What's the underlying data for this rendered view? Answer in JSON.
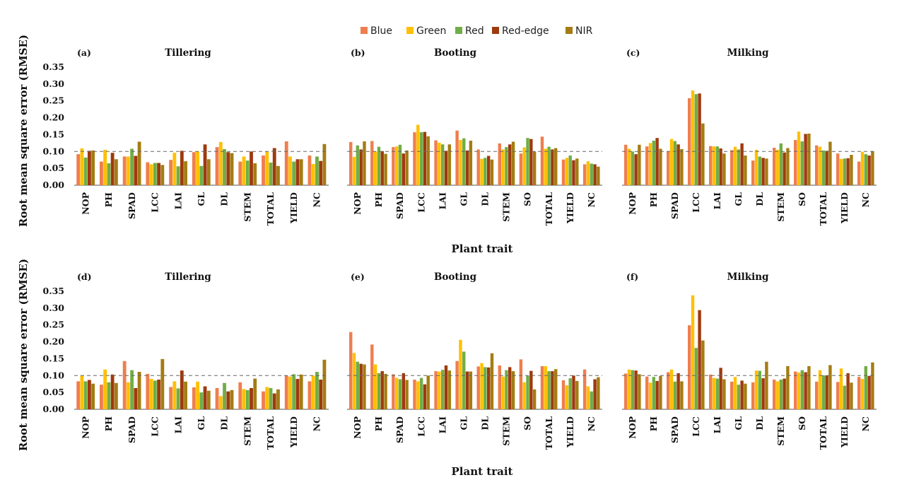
{
  "legend": {
    "items": [
      {
        "name": "Blue",
        "color": "#EE7E4E"
      },
      {
        "name": "Green",
        "color": "#FFC000"
      },
      {
        "name": "Red",
        "color": "#70AD47"
      },
      {
        "name": "Red-edge",
        "color": "#9E3A0E"
      },
      {
        "name": "NIR",
        "color": "#A47C12"
      }
    ]
  },
  "axes": {
    "ylabel": "Root mean square error (RMSE)",
    "xlabel": "Plant trait"
  },
  "chart_data": [
    {
      "type": "bar",
      "panel": "(a)",
      "title": "Tillering",
      "ylim": [
        0,
        0.35
      ],
      "yticks": [
        "0.00",
        "0.05",
        "0.10",
        "0.15",
        "0.20",
        "0.25",
        "0.30",
        "0.35"
      ],
      "reference_line": 0.1,
      "categories": [
        "NOP",
        "PH",
        "SPAD",
        "LCC",
        "LAI",
        "GL",
        "DL",
        "STEM",
        "TOTAL",
        "YIELD",
        "NC"
      ],
      "series": [
        {
          "name": "Blue",
          "values": [
            0.092,
            0.07,
            0.085,
            0.068,
            0.075,
            0.098,
            0.113,
            0.07,
            0.088,
            0.13,
            0.088
          ]
        },
        {
          "name": "Green",
          "values": [
            0.109,
            0.105,
            0.085,
            0.062,
            0.096,
            0.1,
            0.128,
            0.085,
            0.1,
            0.085,
            0.063
          ]
        },
        {
          "name": "Red",
          "values": [
            0.082,
            0.065,
            0.108,
            0.066,
            0.056,
            0.057,
            0.107,
            0.073,
            0.067,
            0.07,
            0.085
          ]
        },
        {
          "name": "Red-edge",
          "values": [
            0.102,
            0.096,
            0.087,
            0.066,
            0.102,
            0.121,
            0.098,
            0.1,
            0.11,
            0.077,
            0.072
          ]
        },
        {
          "name": "NIR",
          "values": [
            0.103,
            0.077,
            0.129,
            0.06,
            0.071,
            0.077,
            0.095,
            0.065,
            0.057,
            0.077,
            0.122
          ]
        }
      ]
    },
    {
      "type": "bar",
      "panel": "(b)",
      "title": "Booting",
      "ylim": [
        0,
        0.35
      ],
      "reference_line": 0.1,
      "categories": [
        "NOP",
        "PH",
        "SPAD",
        "LCC",
        "LAI",
        "GL",
        "DL",
        "STEM",
        "SO",
        "TOTAL",
        "YIELD",
        "NC"
      ],
      "series": [
        {
          "name": "Blue",
          "values": [
            0.128,
            0.131,
            0.113,
            0.157,
            0.133,
            0.162,
            0.106,
            0.124,
            0.094,
            0.144,
            0.076,
            0.062
          ]
        },
        {
          "name": "Green",
          "values": [
            0.084,
            0.1,
            0.115,
            0.179,
            0.126,
            0.134,
            0.078,
            0.106,
            0.112,
            0.108,
            0.081,
            0.071
          ]
        },
        {
          "name": "Red",
          "values": [
            0.118,
            0.114,
            0.12,
            0.157,
            0.121,
            0.139,
            0.081,
            0.113,
            0.14,
            0.114,
            0.088,
            0.064
          ]
        },
        {
          "name": "Red-edge",
          "values": [
            0.106,
            0.101,
            0.094,
            0.158,
            0.102,
            0.103,
            0.087,
            0.121,
            0.137,
            0.106,
            0.074,
            0.062
          ]
        },
        {
          "name": "NIR",
          "values": [
            0.13,
            0.093,
            0.103,
            0.145,
            0.121,
            0.132,
            0.076,
            0.129,
            0.1,
            0.11,
            0.079,
            0.055
          ]
        }
      ]
    },
    {
      "type": "bar",
      "panel": "(c)",
      "title": "Milking",
      "ylim": [
        0,
        0.35
      ],
      "reference_line": 0.1,
      "categories": [
        "NOP",
        "PH",
        "SPAD",
        "LCC",
        "LAI",
        "GL",
        "DL",
        "STEM",
        "SO",
        "TOTAL",
        "YIELD",
        "NC"
      ],
      "series": [
        {
          "name": "Blue",
          "values": [
            0.12,
            0.115,
            0.101,
            0.258,
            0.116,
            0.104,
            0.073,
            0.111,
            0.134,
            0.118,
            0.094,
            0.07
          ]
        },
        {
          "name": "Green",
          "values": [
            0.108,
            0.125,
            0.137,
            0.281,
            0.115,
            0.114,
            0.105,
            0.105,
            0.159,
            0.114,
            0.078,
            0.099
          ]
        },
        {
          "name": "Red",
          "values": [
            0.1,
            0.132,
            0.131,
            0.27,
            0.115,
            0.106,
            0.085,
            0.124,
            0.13,
            0.103,
            0.079,
            0.092
          ]
        },
        {
          "name": "Red-edge",
          "values": [
            0.092,
            0.14,
            0.121,
            0.272,
            0.109,
            0.124,
            0.081,
            0.097,
            0.152,
            0.102,
            0.08,
            0.088
          ]
        },
        {
          "name": "NIR",
          "values": [
            0.12,
            0.108,
            0.107,
            0.183,
            0.094,
            0.088,
            0.079,
            0.11,
            0.153,
            0.129,
            0.09,
            0.101
          ]
        }
      ]
    },
    {
      "type": "bar",
      "panel": "(d)",
      "title": "Tillering",
      "ylim": [
        0,
        0.35
      ],
      "yticks": [
        "0.00",
        "0.05",
        "0.10",
        "0.15",
        "0.20",
        "0.25",
        "0.30",
        "0.35"
      ],
      "reference_line": 0.1,
      "categories": [
        "NOP",
        "PH",
        "SPAD",
        "LCC",
        "LAI",
        "GL",
        "DL",
        "STEM",
        "TOTAL",
        "YIELD",
        "NC"
      ],
      "series": [
        {
          "name": "Blue",
          "values": [
            0.083,
            0.073,
            0.143,
            0.105,
            0.066,
            0.065,
            0.063,
            0.08,
            0.053,
            0.1,
            0.083
          ]
        },
        {
          "name": "Green",
          "values": [
            0.1,
            0.118,
            0.08,
            0.09,
            0.083,
            0.082,
            0.039,
            0.06,
            0.066,
            0.097,
            0.1
          ]
        },
        {
          "name": "Red",
          "values": [
            0.083,
            0.08,
            0.116,
            0.085,
            0.062,
            0.05,
            0.078,
            0.057,
            0.063,
            0.104,
            0.111
          ]
        },
        {
          "name": "Red-edge",
          "values": [
            0.087,
            0.103,
            0.063,
            0.088,
            0.115,
            0.068,
            0.053,
            0.063,
            0.047,
            0.09,
            0.088
          ]
        },
        {
          "name": "NIR",
          "values": [
            0.076,
            0.078,
            0.111,
            0.149,
            0.082,
            0.055,
            0.057,
            0.091,
            0.059,
            0.103,
            0.147
          ]
        }
      ]
    },
    {
      "type": "bar",
      "panel": "(e)",
      "title": "Booting",
      "ylim": [
        0,
        0.35
      ],
      "reference_line": 0.1,
      "categories": [
        "NOP",
        "PH",
        "SPAD",
        "LCC",
        "LAI",
        "GL",
        "DL",
        "STEM",
        "SO",
        "TOTAL",
        "YIELD",
        "NC"
      ],
      "series": [
        {
          "name": "Blue",
          "values": [
            0.229,
            0.192,
            0.104,
            0.088,
            0.113,
            0.143,
            0.127,
            0.13,
            0.148,
            0.128,
            0.086,
            0.118
          ]
        },
        {
          "name": "Green",
          "values": [
            0.167,
            0.133,
            0.093,
            0.083,
            0.112,
            0.206,
            0.137,
            0.097,
            0.08,
            0.128,
            0.071,
            0.068
          ]
        },
        {
          "name": "Red",
          "values": [
            0.141,
            0.107,
            0.089,
            0.093,
            0.117,
            0.171,
            0.125,
            0.116,
            0.099,
            0.113,
            0.092,
            0.053
          ]
        },
        {
          "name": "Red-edge",
          "values": [
            0.135,
            0.113,
            0.107,
            0.074,
            0.13,
            0.112,
            0.124,
            0.125,
            0.114,
            0.113,
            0.1,
            0.089
          ]
        },
        {
          "name": "NIR",
          "values": [
            0.133,
            0.105,
            0.087,
            0.1,
            0.115,
            0.112,
            0.166,
            0.113,
            0.059,
            0.119,
            0.084,
            0.095
          ]
        }
      ]
    },
    {
      "type": "bar",
      "panel": "(f)",
      "title": "Milking",
      "ylim": [
        0,
        0.35
      ],
      "reference_line": 0.1,
      "categories": [
        "NOP",
        "PH",
        "SPAD",
        "LCC",
        "LAI",
        "GL",
        "DL",
        "STEM",
        "SO",
        "TOTAL",
        "YIELD",
        "NC"
      ],
      "series": [
        {
          "name": "Blue",
          "values": [
            0.106,
            0.097,
            0.11,
            0.249,
            0.103,
            0.082,
            0.08,
            0.088,
            0.112,
            0.082,
            0.081,
            0.096
          ]
        },
        {
          "name": "Green",
          "values": [
            0.118,
            0.079,
            0.118,
            0.338,
            0.093,
            0.096,
            0.115,
            0.083,
            0.109,
            0.116,
            0.121,
            0.09
          ]
        },
        {
          "name": "Red",
          "values": [
            0.116,
            0.096,
            0.082,
            0.182,
            0.091,
            0.073,
            0.114,
            0.088,
            0.116,
            0.101,
            0.07,
            0.128
          ]
        },
        {
          "name": "Red-edge",
          "values": [
            0.115,
            0.084,
            0.107,
            0.294,
            0.123,
            0.085,
            0.092,
            0.091,
            0.11,
            0.1,
            0.107,
            0.099
          ]
        },
        {
          "name": "NIR",
          "values": [
            0.104,
            0.099,
            0.083,
            0.204,
            0.089,
            0.076,
            0.141,
            0.128,
            0.128,
            0.131,
            0.079,
            0.139
          ]
        }
      ]
    }
  ]
}
